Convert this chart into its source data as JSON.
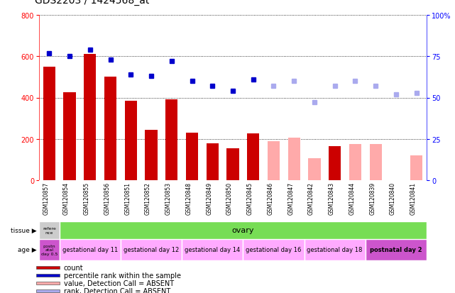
{
  "title": "GDS2203 / 1424568_at",
  "samples": [
    "GSM120857",
    "GSM120854",
    "GSM120855",
    "GSM120856",
    "GSM120851",
    "GSM120852",
    "GSM120853",
    "GSM120848",
    "GSM120849",
    "GSM120850",
    "GSM120845",
    "GSM120846",
    "GSM120847",
    "GSM120842",
    "GSM120843",
    "GSM120844",
    "GSM120839",
    "GSM120840",
    "GSM120841"
  ],
  "count_values": [
    550,
    425,
    610,
    500,
    385,
    245,
    390,
    230,
    180,
    155,
    225,
    null,
    null,
    null,
    165,
    null,
    null,
    null,
    null
  ],
  "count_absent": [
    null,
    null,
    null,
    null,
    null,
    null,
    null,
    null,
    null,
    null,
    null,
    190,
    205,
    105,
    null,
    175,
    175,
    null,
    120
  ],
  "rank_values": [
    77,
    75,
    79,
    73,
    64,
    63,
    72,
    60,
    57,
    54,
    61,
    null,
    null,
    null,
    null,
    null,
    null,
    null,
    null
  ],
  "rank_absent": [
    null,
    null,
    null,
    null,
    null,
    null,
    null,
    null,
    null,
    null,
    null,
    57,
    60,
    47,
    57,
    60,
    57,
    52,
    53
  ],
  "bar_color_present": "#cc0000",
  "bar_color_absent": "#ffaaaa",
  "dot_color_present": "#0000cc",
  "dot_color_absent": "#aaaaee",
  "ylim_left": [
    0,
    800
  ],
  "ylim_right": [
    0,
    100
  ],
  "yticks_left": [
    0,
    200,
    400,
    600,
    800
  ],
  "yticks_right": [
    0,
    25,
    50,
    75,
    100
  ],
  "tissue_row": {
    "ref_label": "refere\nnce",
    "ref_color": "#cccccc",
    "ovary_label": "ovary",
    "ovary_color": "#77dd55",
    "ref_count": 1,
    "ovary_count": 18
  },
  "age_row": {
    "groups": [
      {
        "label": "postn\natal\nday 0.5",
        "color": "#cc55cc",
        "count": 1
      },
      {
        "label": "gestational day 11",
        "color": "#ffaaff",
        "count": 3
      },
      {
        "label": "gestational day 12",
        "color": "#ffaaff",
        "count": 3
      },
      {
        "label": "gestational day 14",
        "color": "#ffaaff",
        "count": 3
      },
      {
        "label": "gestational day 16",
        "color": "#ffaaff",
        "count": 3
      },
      {
        "label": "gestational day 18",
        "color": "#ffaaff",
        "count": 3
      },
      {
        "label": "postnatal day 2",
        "color": "#cc55cc",
        "count": 3
      }
    ]
  },
  "legend": [
    {
      "label": "count",
      "color": "#cc0000"
    },
    {
      "label": "percentile rank within the sample",
      "color": "#0000cc"
    },
    {
      "label": "value, Detection Call = ABSENT",
      "color": "#ffaaaa"
    },
    {
      "label": "rank, Detection Call = ABSENT",
      "color": "#aaaaee"
    }
  ],
  "bg_color": "#ffffff",
  "title_fontsize": 10
}
